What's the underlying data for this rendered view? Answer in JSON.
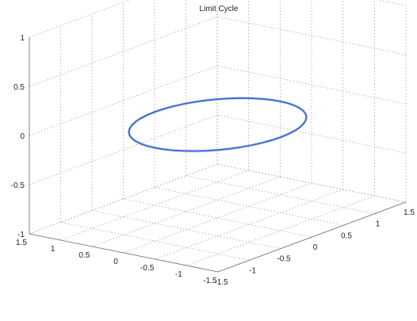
{
  "chart_data": {
    "type": "line",
    "projection": "3d",
    "title": "Limit Cycle",
    "xlabel": "",
    "ylabel": "",
    "zlabel": "",
    "xlim": [
      -1.5,
      1.5
    ],
    "ylim": [
      -1.5,
      1.5
    ],
    "zlim": [
      -1,
      1
    ],
    "x_ticks": [
      "-1.5",
      "-1",
      "-0.5",
      "0",
      "0.5",
      "1",
      "1.5"
    ],
    "y_ticks": [
      "-1.5",
      "-1",
      "-0.5",
      "0",
      "0.5",
      "1",
      "1.5"
    ],
    "z_ticks": [
      "-1",
      "-0.5",
      "0",
      "0.5",
      "1"
    ],
    "grid": true,
    "series": [
      {
        "color": "#2f6fd6",
        "shape": "circle",
        "radius": 1.0,
        "z": -0.05,
        "points": 48
      }
    ]
  }
}
